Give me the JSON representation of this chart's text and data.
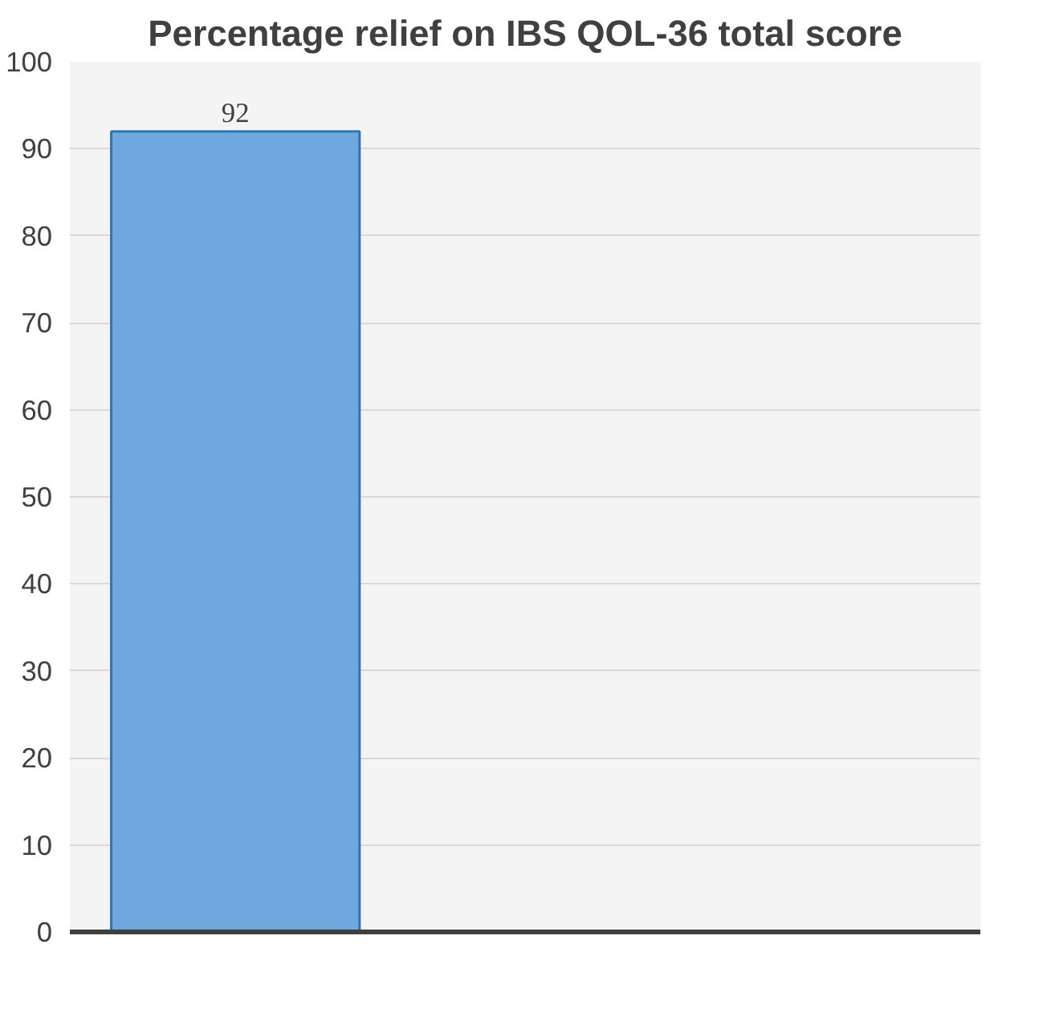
{
  "chart_data": {
    "type": "bar",
    "title": "Percentage relief on IBS QOL-36 total score",
    "categories": [
      null
    ],
    "values": [
      92
    ],
    "color": "#6fa8dc",
    "ylim": [
      0,
      100
    ],
    "yticks": [
      0,
      10,
      20,
      30,
      40,
      50,
      60,
      70,
      80,
      90,
      100
    ],
    "grid": "y",
    "data_labels": true
  }
}
